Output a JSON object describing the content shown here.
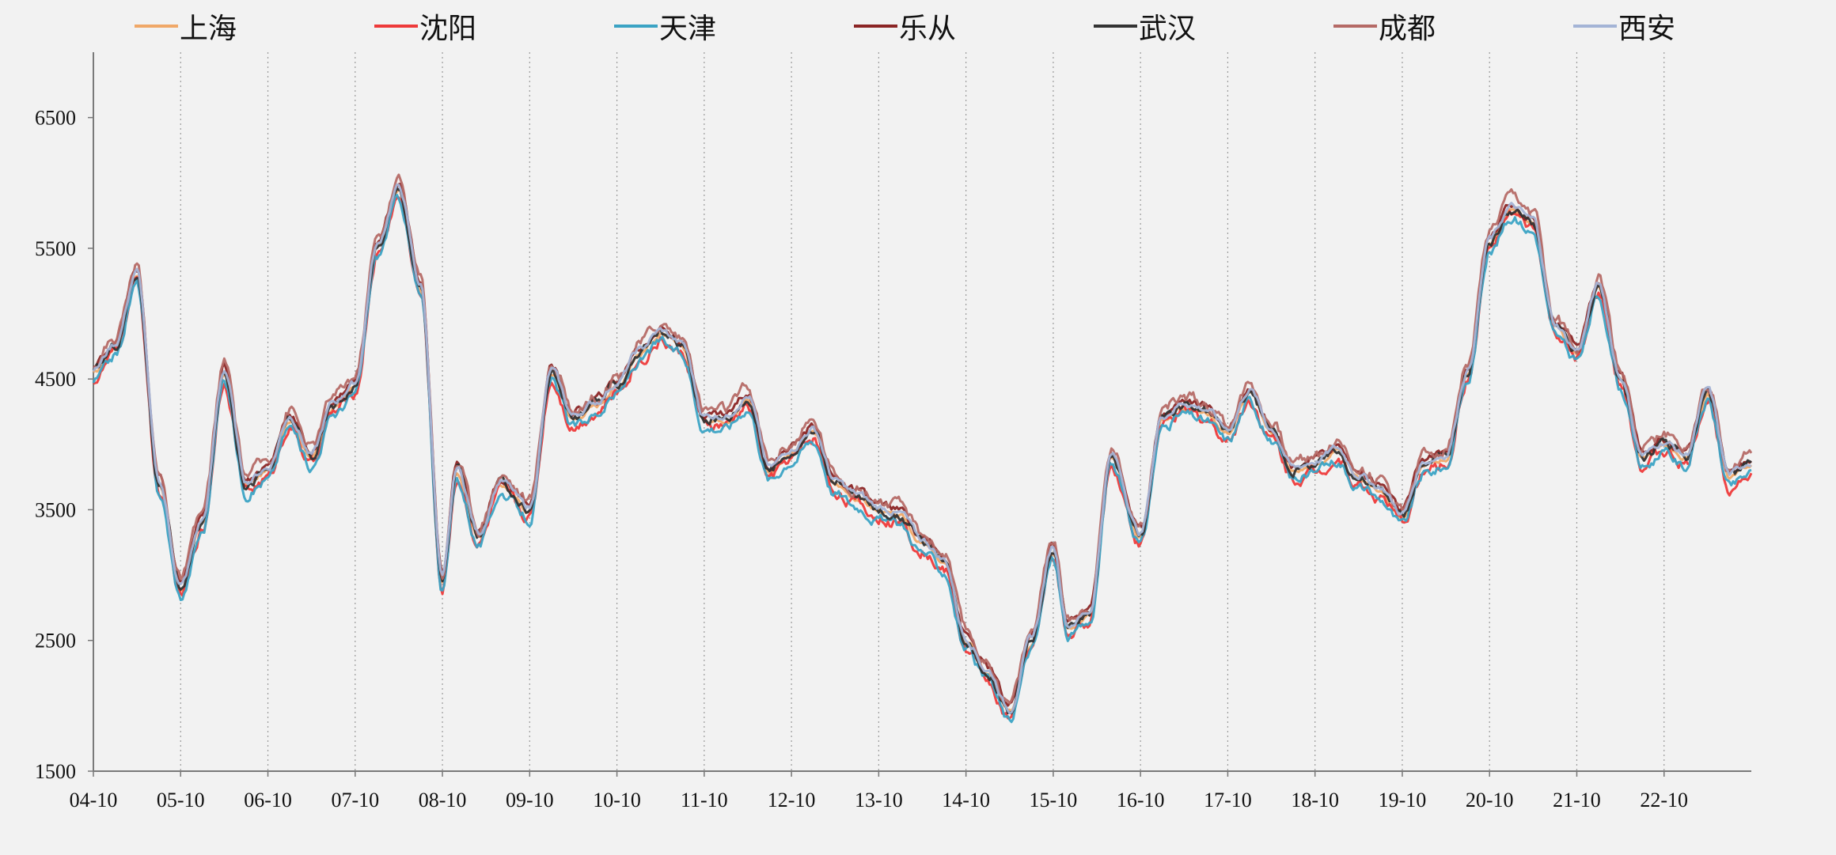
{
  "chart_data": {
    "type": "line",
    "ylim": [
      1500,
      7000
    ],
    "yticks": [
      1500,
      2500,
      3500,
      4500,
      5500,
      6500
    ],
    "xticks": [
      "04-10",
      "05-10",
      "06-10",
      "07-10",
      "08-10",
      "09-10",
      "10-10",
      "11-10",
      "12-10",
      "13-10",
      "14-10",
      "15-10",
      "16-10",
      "17-10",
      "18-10",
      "19-10",
      "20-10",
      "21-10",
      "22-10"
    ],
    "xlim": [
      "2004-10",
      "2023-10"
    ],
    "grid": "vertical dotted",
    "legend_position": "top",
    "x": [
      "2004-10",
      "2005-01",
      "2005-04",
      "2005-07",
      "2005-10",
      "2006-01",
      "2006-04",
      "2006-07",
      "2006-10",
      "2007-01",
      "2007-04",
      "2007-07",
      "2007-10",
      "2008-01",
      "2008-04",
      "2008-07",
      "2008-10",
      "2008-12",
      "2009-03",
      "2009-06",
      "2009-10",
      "2010-01",
      "2010-04",
      "2010-07",
      "2010-10",
      "2011-01",
      "2011-04",
      "2011-07",
      "2011-10",
      "2012-01",
      "2012-04",
      "2012-07",
      "2012-10",
      "2013-01",
      "2013-04",
      "2013-07",
      "2013-10",
      "2014-01",
      "2014-04",
      "2014-07",
      "2014-10",
      "2015-01",
      "2015-04",
      "2015-07",
      "2015-10",
      "2015-12",
      "2016-03",
      "2016-06",
      "2016-10",
      "2017-01",
      "2017-04",
      "2017-07",
      "2017-10",
      "2018-01",
      "2018-04",
      "2018-07",
      "2018-10",
      "2019-01",
      "2019-04",
      "2019-07",
      "2019-10",
      "2020-01",
      "2020-04",
      "2020-07",
      "2020-10",
      "2021-01",
      "2021-04",
      "2021-07",
      "2021-10",
      "2022-01",
      "2022-04",
      "2022-07",
      "2022-10",
      "2023-01",
      "2023-04",
      "2023-07",
      "2023-10"
    ],
    "base": [
      4550,
      4750,
      5300,
      3700,
      2900,
      3400,
      4550,
      3700,
      3800,
      4200,
      3900,
      4300,
      4450,
      5500,
      5950,
      5200,
      2950,
      3800,
      3300,
      3700,
      3500,
      4550,
      4200,
      4300,
      4450,
      4700,
      4850,
      4750,
      4200,
      4200,
      4350,
      3800,
      3950,
      4100,
      3700,
      3600,
      3500,
      3450,
      3250,
      3100,
      2500,
      2250,
      1950,
      2500,
      3200,
      2600,
      2700,
      3900,
      3300,
      4200,
      4300,
      4250,
      4100,
      4400,
      4100,
      3800,
      3850,
      3950,
      3750,
      3650,
      3450,
      3850,
      3900,
      4550,
      5550,
      5800,
      5700,
      4900,
      4700,
      5200,
      4500,
      3900,
      4000,
      3900,
      4400,
      3750,
      3850
    ],
    "series": [
      {
        "name": "上海",
        "color": "#f0a868",
        "offset": -10,
        "wobble": 30
      },
      {
        "name": "沈阳",
        "color": "#ee3a3a",
        "offset": -60,
        "wobble": 70
      },
      {
        "name": "天津",
        "color": "#3ba3c4",
        "offset": -70,
        "wobble": 60
      },
      {
        "name": "乐从",
        "color": "#8b2525",
        "offset": 40,
        "wobble": 50
      },
      {
        "name": "武汉",
        "color": "#333333",
        "offset": 0,
        "wobble": 55
      },
      {
        "name": "成都",
        "color": "#b56a66",
        "offset": 70,
        "wobble": 75
      },
      {
        "name": "西安",
        "color": "#a4b4d6",
        "offset": 20,
        "wobble": 40
      }
    ]
  }
}
